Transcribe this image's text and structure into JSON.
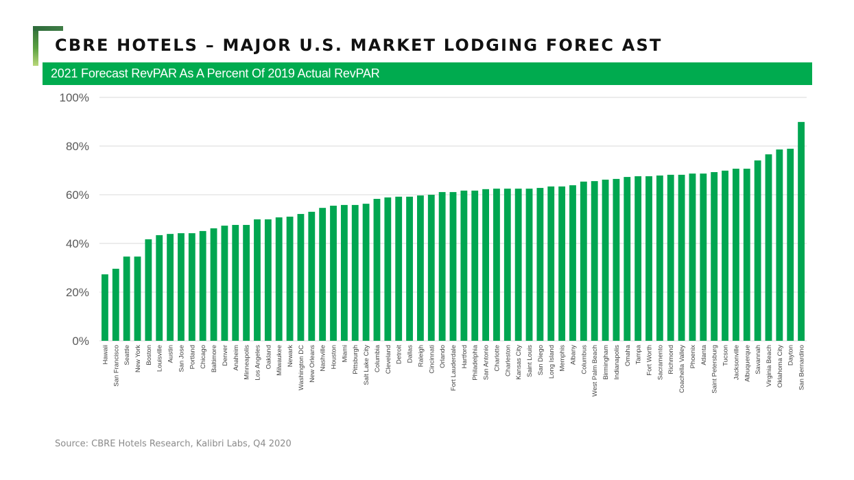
{
  "header": {
    "title": "CBRE HOTELS – MAJOR U.S. MARKET LODGING FOREC AST",
    "subtitle": "2021 Forecast RevPAR As A Percent Of 2019 Actual RevPAR"
  },
  "footer": {
    "source": "Source: CBRE Hotels Research, Kalibri Labs, Q4 2020"
  },
  "colors": {
    "bar": "#00a651",
    "accent_green": "#00ab4f",
    "grid": "#d9d9d9"
  },
  "chart_data": {
    "type": "bar",
    "title": "2021 Forecast RevPAR As A Percent Of 2019 Actual RevPAR",
    "xlabel": "",
    "ylabel": "",
    "ylim": [
      0,
      100
    ],
    "yticks": [
      0,
      20,
      40,
      60,
      80,
      100
    ],
    "ytick_labels": [
      "0%",
      "20%",
      "40%",
      "60%",
      "80%",
      "100%"
    ],
    "grid": true,
    "legend": "none",
    "categories": [
      "Hawaii",
      "San Francisco",
      "Seattle",
      "New York",
      "Boston",
      "Louisville",
      "Austin",
      "San Jose",
      "Portland",
      "Chicago",
      "Baltimore",
      "Denver",
      "Anaheim",
      "Minneapolis",
      "Los Angeles",
      "Oakland",
      "Milwaukee",
      "Newark",
      "Washington DC",
      "New Orleans",
      "Nashville",
      "Houston",
      "Miami",
      "Pittsburgh",
      "Salt Lake City",
      "Columbia",
      "Cleveland",
      "Detroit",
      "Dallas",
      "Raleigh",
      "Cincinnati",
      "Orlando",
      "Fort Lauderdale",
      "Hartford",
      "Philadelphia",
      "San Antonio",
      "Charlotte",
      "Charleston",
      "Kansas City",
      "Saint Louis",
      "San Diego",
      "Long Island",
      "Memphis",
      "Albany",
      "Columbus",
      "West Palm Beach",
      "Birmingham",
      "Indianapolis",
      "Omaha",
      "Tampa",
      "Fort Worth",
      "Sacramento",
      "Richmond",
      "Coachella Valley",
      "Phoenix",
      "Atlanta",
      "Saint Petersburg",
      "Tucson",
      "Jacksonville",
      "Albuquerque",
      "Savannah",
      "Virginia Beach",
      "Oklahoma City",
      "Dayton",
      "San Bernardino"
    ],
    "values": [
      27.3,
      29.6,
      34.6,
      34.6,
      41.7,
      43.4,
      43.9,
      44.2,
      44.2,
      45.1,
      46.2,
      47.3,
      47.6,
      47.6,
      49.9,
      49.9,
      50.7,
      51.0,
      52.1,
      53.0,
      54.6,
      55.5,
      55.8,
      55.8,
      56.3,
      58.3,
      58.9,
      59.2,
      59.2,
      59.7,
      60.0,
      61.1,
      61.1,
      61.7,
      61.7,
      62.3,
      62.5,
      62.5,
      62.5,
      62.5,
      62.8,
      63.4,
      63.4,
      63.9,
      65.4,
      65.6,
      66.2,
      66.5,
      67.3,
      67.6,
      67.6,
      67.9,
      68.2,
      68.2,
      68.7,
      68.7,
      69.3,
      69.9,
      70.7,
      70.7,
      74.1,
      76.6,
      78.6,
      78.9,
      89.9
    ]
  }
}
